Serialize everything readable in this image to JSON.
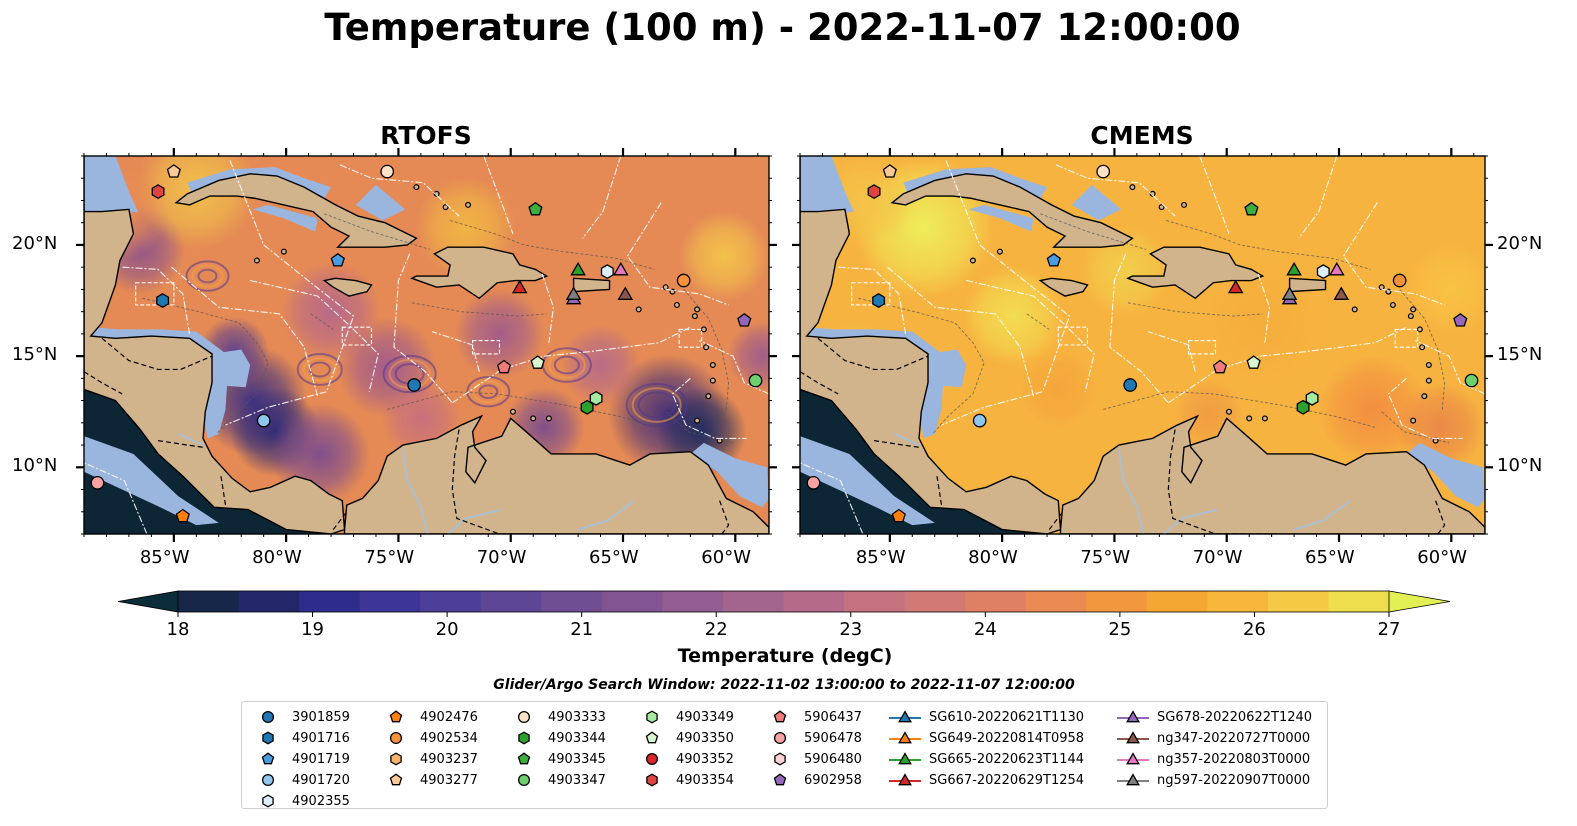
{
  "title": "Temperature (100 m) - 2022-11-07 12:00:00",
  "panels": [
    {
      "name": "RTOFS",
      "style": "rtofs"
    },
    {
      "name": "CMEMS",
      "style": "cmems"
    }
  ],
  "map_extent": {
    "lon": [
      -89,
      -58.5
    ],
    "lat": [
      7,
      24
    ]
  },
  "lon_ticks": [
    {
      "value": -85,
      "label": "85°W"
    },
    {
      "value": -80,
      "label": "80°W"
    },
    {
      "value": -75,
      "label": "75°W"
    },
    {
      "value": -70,
      "label": "70°W"
    },
    {
      "value": -65,
      "label": "65°W"
    },
    {
      "value": -60,
      "label": "60°W"
    }
  ],
  "lat_ticks": [
    {
      "value": 20,
      "label": "20°N"
    },
    {
      "value": 15,
      "label": "15°N"
    },
    {
      "value": 10,
      "label": "10°N"
    }
  ],
  "colorbar": {
    "label": "Temperature (degC)",
    "min": 18,
    "max": 27,
    "extend": "both",
    "ticks": [
      "18",
      "19",
      "20",
      "21",
      "22",
      "23",
      "24",
      "25",
      "26",
      "27"
    ],
    "colors": [
      "#0b2d3a",
      "#16274a",
      "#222769",
      "#2e2d8b",
      "#3d3597",
      "#4d3e99",
      "#5e4697",
      "#6f4e94",
      "#815592",
      "#925d90",
      "#a3648d",
      "#b46a88",
      "#c47180",
      "#d27875",
      "#de8064",
      "#e98a52",
      "#f1983f",
      "#f5a734",
      "#f6b73a",
      "#f4c944",
      "#eedd4c",
      "#e3f055"
    ]
  },
  "markers": [
    {
      "id": "3901859",
      "shape": "circle",
      "color": "#1f77b4",
      "lon": -74.3,
      "lat": 13.7
    },
    {
      "id": "4901716",
      "shape": "hexagon",
      "color": "#1f77b4",
      "lon": -85.5,
      "lat": 17.5
    },
    {
      "id": "4901719",
      "shape": "pentagon",
      "color": "#4a9be0",
      "lon": -77.7,
      "lat": 19.3
    },
    {
      "id": "4901720",
      "shape": "circle",
      "color": "#8fc6ec",
      "lon": -81.0,
      "lat": 12.1
    },
    {
      "id": "4902355",
      "shape": "hexagon",
      "color": "#dcefff",
      "lon": -65.7,
      "lat": 18.8
    },
    {
      "id": "4902476",
      "shape": "pentagon",
      "color": "#ff7f0e",
      "lon": -84.6,
      "lat": 7.8
    },
    {
      "id": "4902534",
      "shape": "circle",
      "color": "#f7923a",
      "lon": -62.3,
      "lat": 18.4
    },
    {
      "id": "4903237",
      "shape": "hexagon",
      "color": "#fbb26b",
      "lon": null,
      "lat": null
    },
    {
      "id": "4903277",
      "shape": "pentagon",
      "color": "#fcca97",
      "lon": -85.0,
      "lat": 23.3
    },
    {
      "id": "4903333",
      "shape": "circle",
      "color": "#fde3c6",
      "lon": -75.5,
      "lat": 23.3
    },
    {
      "id": "4903344",
      "shape": "hexagon",
      "color": "#2ca02c",
      "lon": -66.6,
      "lat": 12.7
    },
    {
      "id": "4903345",
      "shape": "pentagon",
      "color": "#3dae3d",
      "lon": -68.9,
      "lat": 21.6
    },
    {
      "id": "4903347",
      "shape": "circle",
      "color": "#6cd16c",
      "lon": -59.1,
      "lat": 13.9
    },
    {
      "id": "4903349",
      "shape": "hexagon",
      "color": "#a6e9a0",
      "lon": -66.2,
      "lat": 13.1
    },
    {
      "id": "4903350",
      "shape": "pentagon",
      "color": "#d9f7cf",
      "lon": -68.8,
      "lat": 14.7
    },
    {
      "id": "4903352",
      "shape": "circle",
      "color": "#d62728",
      "lon": null,
      "lat": null
    },
    {
      "id": "4903354",
      "shape": "hexagon",
      "color": "#e0443f",
      "lon": -85.7,
      "lat": 22.4
    },
    {
      "id": "5906437",
      "shape": "pentagon",
      "color": "#f07b7b",
      "lon": -70.3,
      "lat": 14.5
    },
    {
      "id": "5906478",
      "shape": "circle",
      "color": "#f8a3a3",
      "lon": -88.4,
      "lat": 9.3
    },
    {
      "id": "5906480",
      "shape": "hexagon",
      "color": "#fcd2d2",
      "lon": null,
      "lat": null
    },
    {
      "id": "6902958",
      "shape": "pentagon",
      "color": "#9467bd",
      "lon": -59.6,
      "lat": 16.6
    },
    {
      "id": "SG610-20220621T1130",
      "shape": "triangle",
      "color": "#1f77b4",
      "lon": null,
      "lat": null
    },
    {
      "id": "SG649-20220814T0958",
      "shape": "triangle",
      "color": "#ff7f0e",
      "lon": null,
      "lat": null
    },
    {
      "id": "SG665-20220623T1144",
      "shape": "triangle",
      "color": "#2ca02c",
      "lon": -67.0,
      "lat": 18.9
    },
    {
      "id": "SG667-20220629T1254",
      "shape": "triangle",
      "color": "#d62728",
      "lon": -69.6,
      "lat": 18.1
    },
    {
      "id": "SG678-20220622T1240",
      "shape": "triangle",
      "color": "#9467bd",
      "lon": -67.2,
      "lat": 17.6
    },
    {
      "id": "ng347-20220727T0000",
      "shape": "triangle",
      "color": "#8c564b",
      "lon": -64.9,
      "lat": 17.8
    },
    {
      "id": "ng357-20220803T0000",
      "shape": "triangle",
      "color": "#e377c2",
      "lon": -65.1,
      "lat": 18.9
    },
    {
      "id": "ng597-20220907T0000",
      "shape": "triangle",
      "color": "#7f7f7f",
      "lon": -67.2,
      "lat": 17.8
    }
  ],
  "legend": {
    "title": "Glider/Argo Search Window: 2022-11-02 13:00:00 to 2022-11-07 12:00:00"
  },
  "colors": {
    "land": "#d2b48c",
    "shelf": "#9ab6df",
    "coast": "#000000"
  }
}
